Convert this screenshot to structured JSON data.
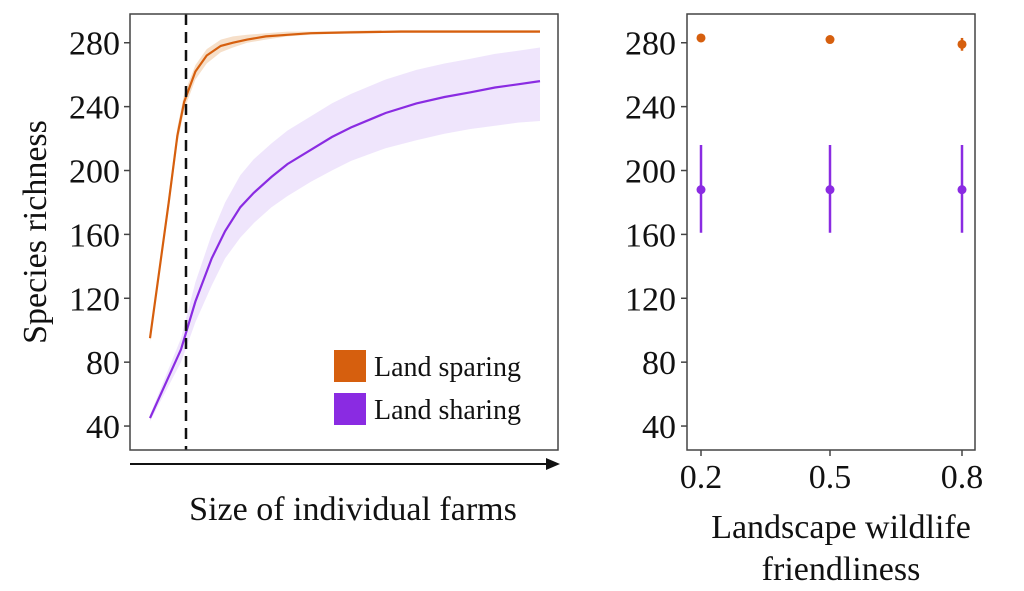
{
  "chart_data": [
    {
      "type": "line",
      "xlabel": "Size of individual farms",
      "ylabel": "Species richness",
      "ylim": [
        25,
        298
      ],
      "yticks": [
        "40",
        "80",
        "120",
        "160",
        "200",
        "240",
        "280"
      ],
      "x_axis_note": "unlabeled increasing axis (arrow)",
      "vline_note": "dashed vertical reference line near small farm size",
      "series": [
        {
          "name": "Land sparing",
          "color": "#d65f0e",
          "band_color": "#f4d9c0",
          "x": [
            0,
            0.004,
            0.008,
            0.012,
            0.02,
            0.03,
            0.045,
            0.06,
            0.08,
            0.11,
            0.15,
            0.2,
            0.3,
            0.45,
            0.6,
            0.8,
            1.0
          ],
          "y": [
            95,
            180,
            222,
            243,
            262,
            272,
            278,
            280,
            282,
            284,
            285,
            286,
            286.5,
            287,
            287,
            287,
            287
          ],
          "lower": [
            93,
            175,
            217,
            238,
            257,
            267,
            274,
            277,
            280,
            282,
            284,
            285,
            286,
            286.5,
            287,
            287,
            287
          ],
          "upper": [
            97,
            185,
            227,
            248,
            266,
            276,
            282,
            284,
            285,
            286,
            287,
            287,
            287.5,
            288,
            288,
            288,
            288
          ]
        },
        {
          "name": "Land sharing",
          "color": "#8a2be2",
          "band_color": "#ece0fb",
          "x": [
            0,
            0.01,
            0.02,
            0.035,
            0.05,
            0.07,
            0.09,
            0.12,
            0.15,
            0.2,
            0.25,
            0.3,
            0.4,
            0.5,
            0.6,
            0.7,
            0.8,
            0.9,
            1.0
          ],
          "y": [
            45,
            88,
            118,
            145,
            162,
            177,
            186,
            196,
            204,
            213,
            221,
            227,
            236,
            242,
            246,
            249,
            252,
            254,
            256
          ],
          "lower": [
            43,
            80,
            105,
            128,
            145,
            158,
            167,
            177,
            184,
            193,
            200,
            206,
            214,
            219,
            223,
            226,
            228,
            230,
            231
          ],
          "upper": [
            47,
            95,
            130,
            160,
            180,
            197,
            207,
            217,
            225,
            234,
            242,
            248,
            257,
            263,
            267,
            270,
            273,
            275,
            277
          ]
        }
      ],
      "legend": [
        {
          "label": "Land sparing",
          "color": "#d65f0e"
        },
        {
          "label": "Land sharing",
          "color": "#8a2be2"
        }
      ]
    },
    {
      "type": "scatter",
      "xlabel": "Landscape wildlife friendliness",
      "xlabel_lines": [
        "Landscape wildlife",
        "friendliness"
      ],
      "categories": [
        "0.2",
        "0.5",
        "0.8"
      ],
      "ylim": [
        25,
        298
      ],
      "yticks": [
        "40",
        "80",
        "120",
        "160",
        "200",
        "240",
        "280"
      ],
      "series": [
        {
          "name": "Land sparing",
          "color": "#d65f0e",
          "values": [
            283,
            282,
            279
          ],
          "lower": [
            282,
            280,
            275
          ],
          "upper": [
            284,
            284,
            283
          ]
        },
        {
          "name": "Land sharing",
          "color": "#8a2be2",
          "values": [
            188,
            188,
            188
          ],
          "lower": [
            161,
            161,
            161
          ],
          "upper": [
            216,
            216,
            216
          ]
        }
      ]
    }
  ]
}
